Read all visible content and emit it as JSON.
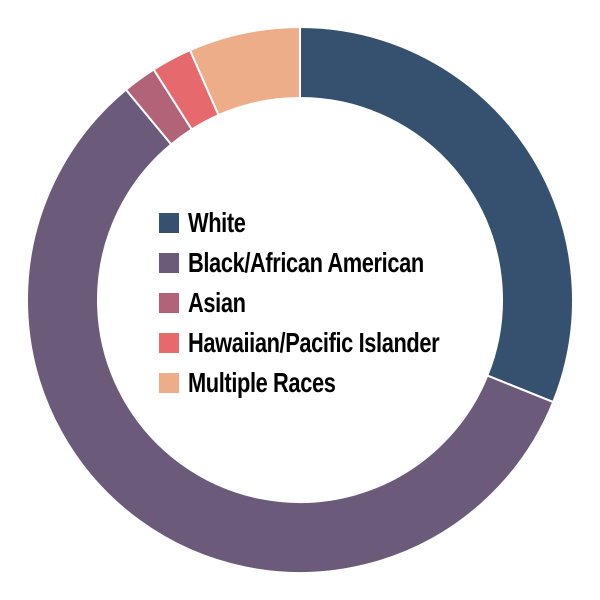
{
  "chart_data": {
    "type": "pie",
    "subtype": "donut",
    "title": "",
    "labels": [
      "White",
      "Black/African American",
      "Asian",
      "Hawaiian/Pacific Islander",
      "Multiple Races"
    ],
    "values": [
      31.1,
      57.9,
      2.0,
      2.4,
      6.6
    ],
    "colors": [
      "#35516F",
      "#6C5A7B",
      "#B26378",
      "#E6696E",
      "#EDAD88"
    ],
    "separator_color": "#FFFFFF",
    "background_color": "#FFFFFF",
    "legend_text_color": "#000000",
    "start_angle_deg": 0,
    "direction": "clockwise",
    "inner_radius_ratio": 0.74,
    "legend_position": "center"
  }
}
